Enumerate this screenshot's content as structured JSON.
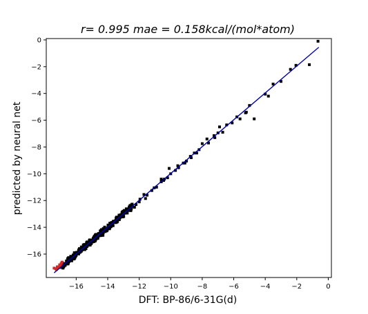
{
  "chart_data": {
    "type": "scatter",
    "title": "r= 0.995 mae = 0.158kcal/(mol*atom)",
    "xlabel": "DFT: BP-86/6-31G(d)",
    "ylabel": "predicted by neural net",
    "xlim": [
      -17.9,
      0.2
    ],
    "ylim": [
      -17.75,
      0.1
    ],
    "xticks": [
      -16,
      -14,
      -12,
      -10,
      -8,
      -6,
      -4,
      -2,
      0
    ],
    "yticks": [
      0,
      -2,
      -4,
      -6,
      -8,
      -10,
      -12,
      -14,
      -16
    ],
    "grid": false,
    "colors": {
      "points": "#000000",
      "highlight": "#d62728",
      "fit_line": "#0000aa",
      "frame": "#000000"
    },
    "fit_line": {
      "x": [
        -17.4,
        -0.6
      ],
      "y": [
        -17.4,
        -0.55
      ]
    },
    "highlight_points": {
      "x": [
        -17.4,
        -17.3,
        -17.25,
        -17.2,
        -17.1,
        -17.05,
        -17.0,
        -16.95,
        -16.9
      ],
      "y": [
        -17.05,
        -17.1,
        -17.15,
        -16.95,
        -17.0,
        -16.8,
        -16.85,
        -16.7,
        -16.6
      ]
    },
    "series": [
      {
        "x": [
          -0.65,
          -1.2,
          -2.4,
          -2.05,
          -3.0,
          -3.5,
          -4.0,
          -3.8,
          -4.7,
          -5.0,
          -5.2,
          -5.6,
          -5.8,
          -6.1,
          -6.7,
          -6.9,
          -7.0,
          -7.2,
          -7.6,
          -7.7,
          -8.0,
          -8.2,
          -8.5,
          -8.7,
          -9.0,
          -9.2,
          -9.5,
          -9.7,
          -10.0,
          -10.2,
          -10.4,
          -10.6,
          -10.9,
          -11.2,
          -11.5,
          -11.7,
          -12.0,
          -12.2,
          -12.5,
          -12.8,
          -13.0,
          -13.2,
          -13.5,
          -13.7,
          -14.0,
          -14.2,
          -14.4,
          -14.6,
          -14.9,
          -15.1,
          -15.4,
          -15.6,
          -15.8,
          -16.0,
          -16.2,
          -16.4,
          -16.6,
          -16.8,
          -17.0,
          -11.6,
          -10.6,
          -10.1,
          -9.1,
          -12.9,
          -14.3,
          -13.4,
          -15.3,
          -15.9,
          -16.7,
          -14.8,
          -12.3,
          -8.35,
          -7.25,
          -6.45,
          -5.25,
          -11.05,
          -13.85,
          -15.55,
          -16.05,
          -16.45,
          -13.05,
          -11.95,
          -10.45,
          -9.55,
          -8.75
        ],
        "y": [
          -0.1,
          -1.85,
          -2.2,
          -1.9,
          -3.1,
          -3.3,
          -4.05,
          -4.2,
          -5.9,
          -4.9,
          -5.4,
          -5.9,
          -5.75,
          -6.2,
          -6.9,
          -6.5,
          -6.95,
          -7.3,
          -7.7,
          -7.4,
          -7.75,
          -8.2,
          -8.45,
          -8.8,
          -9.05,
          -9.2,
          -9.55,
          -9.75,
          -10.0,
          -10.3,
          -10.4,
          -10.6,
          -11.0,
          -11.25,
          -11.6,
          -11.55,
          -12.1,
          -12.3,
          -12.5,
          -12.9,
          -13.05,
          -13.2,
          -13.5,
          -13.7,
          -14.1,
          -14.1,
          -14.5,
          -14.6,
          -15.0,
          -15.2,
          -15.5,
          -15.6,
          -15.8,
          -16.1,
          -16.3,
          -16.4,
          -16.7,
          -16.9,
          -17.0,
          -11.85,
          -10.4,
          -9.6,
          -9.2,
          -12.85,
          -14.6,
          -13.3,
          -15.15,
          -15.95,
          -16.85,
          -14.9,
          -12.5,
          -8.45,
          -7.15,
          -6.35,
          -5.45,
          -11.05,
          -13.7,
          -15.65,
          -16.2,
          -16.55,
          -13.1,
          -11.9,
          -10.5,
          -9.4,
          -8.7
        ]
      }
    ]
  }
}
